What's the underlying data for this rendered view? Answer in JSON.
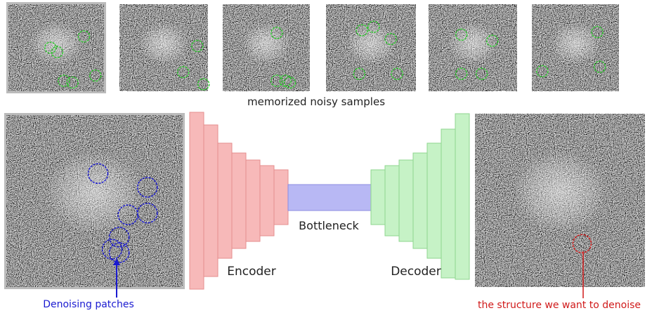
{
  "caption": "memorized noisy samples",
  "labels": {
    "encoder": "Encoder",
    "bottleneck": "Bottleneck",
    "decoder": "Decoder"
  },
  "annotations": {
    "denoising_patches": "Denoising patches",
    "target_structure": "the structure we want to denoise"
  }
}
